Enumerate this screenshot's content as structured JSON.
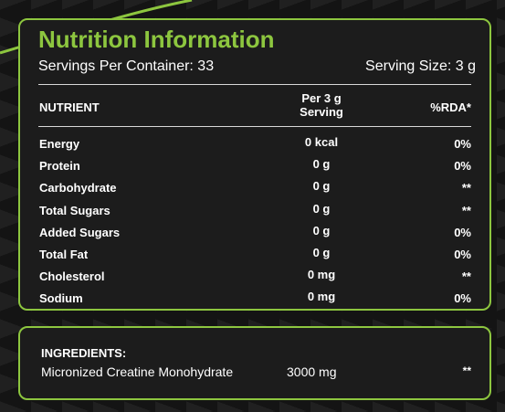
{
  "header": {
    "title": "Nutrition Information",
    "servings_per_container": "Servings Per Container: 33",
    "serving_size": "Serving Size: 3 g"
  },
  "table": {
    "columns": [
      "NUTRIENT",
      [
        "Per 3 g",
        "Serving"
      ],
      "%RDA*"
    ],
    "rows": [
      [
        "Energy",
        "0 kcal",
        "0%"
      ],
      [
        "Protein",
        "0 g",
        "0%"
      ],
      [
        "Carbohydrate",
        "0 g",
        "**"
      ],
      [
        "Total Sugars",
        "0 g",
        "**"
      ],
      [
        "Added Sugars",
        "0 g",
        "0%"
      ],
      [
        "Total Fat",
        "0 g",
        "0%"
      ],
      [
        "Cholesterol",
        "0 mg",
        "**"
      ],
      [
        "Sodium",
        "0 mg",
        "0%"
      ]
    ]
  },
  "ingredients": {
    "heading": "INGREDIENTS:",
    "items": [
      [
        "Micronized Creatine Monohydrate",
        "3000 mg",
        "**"
      ]
    ]
  }
}
